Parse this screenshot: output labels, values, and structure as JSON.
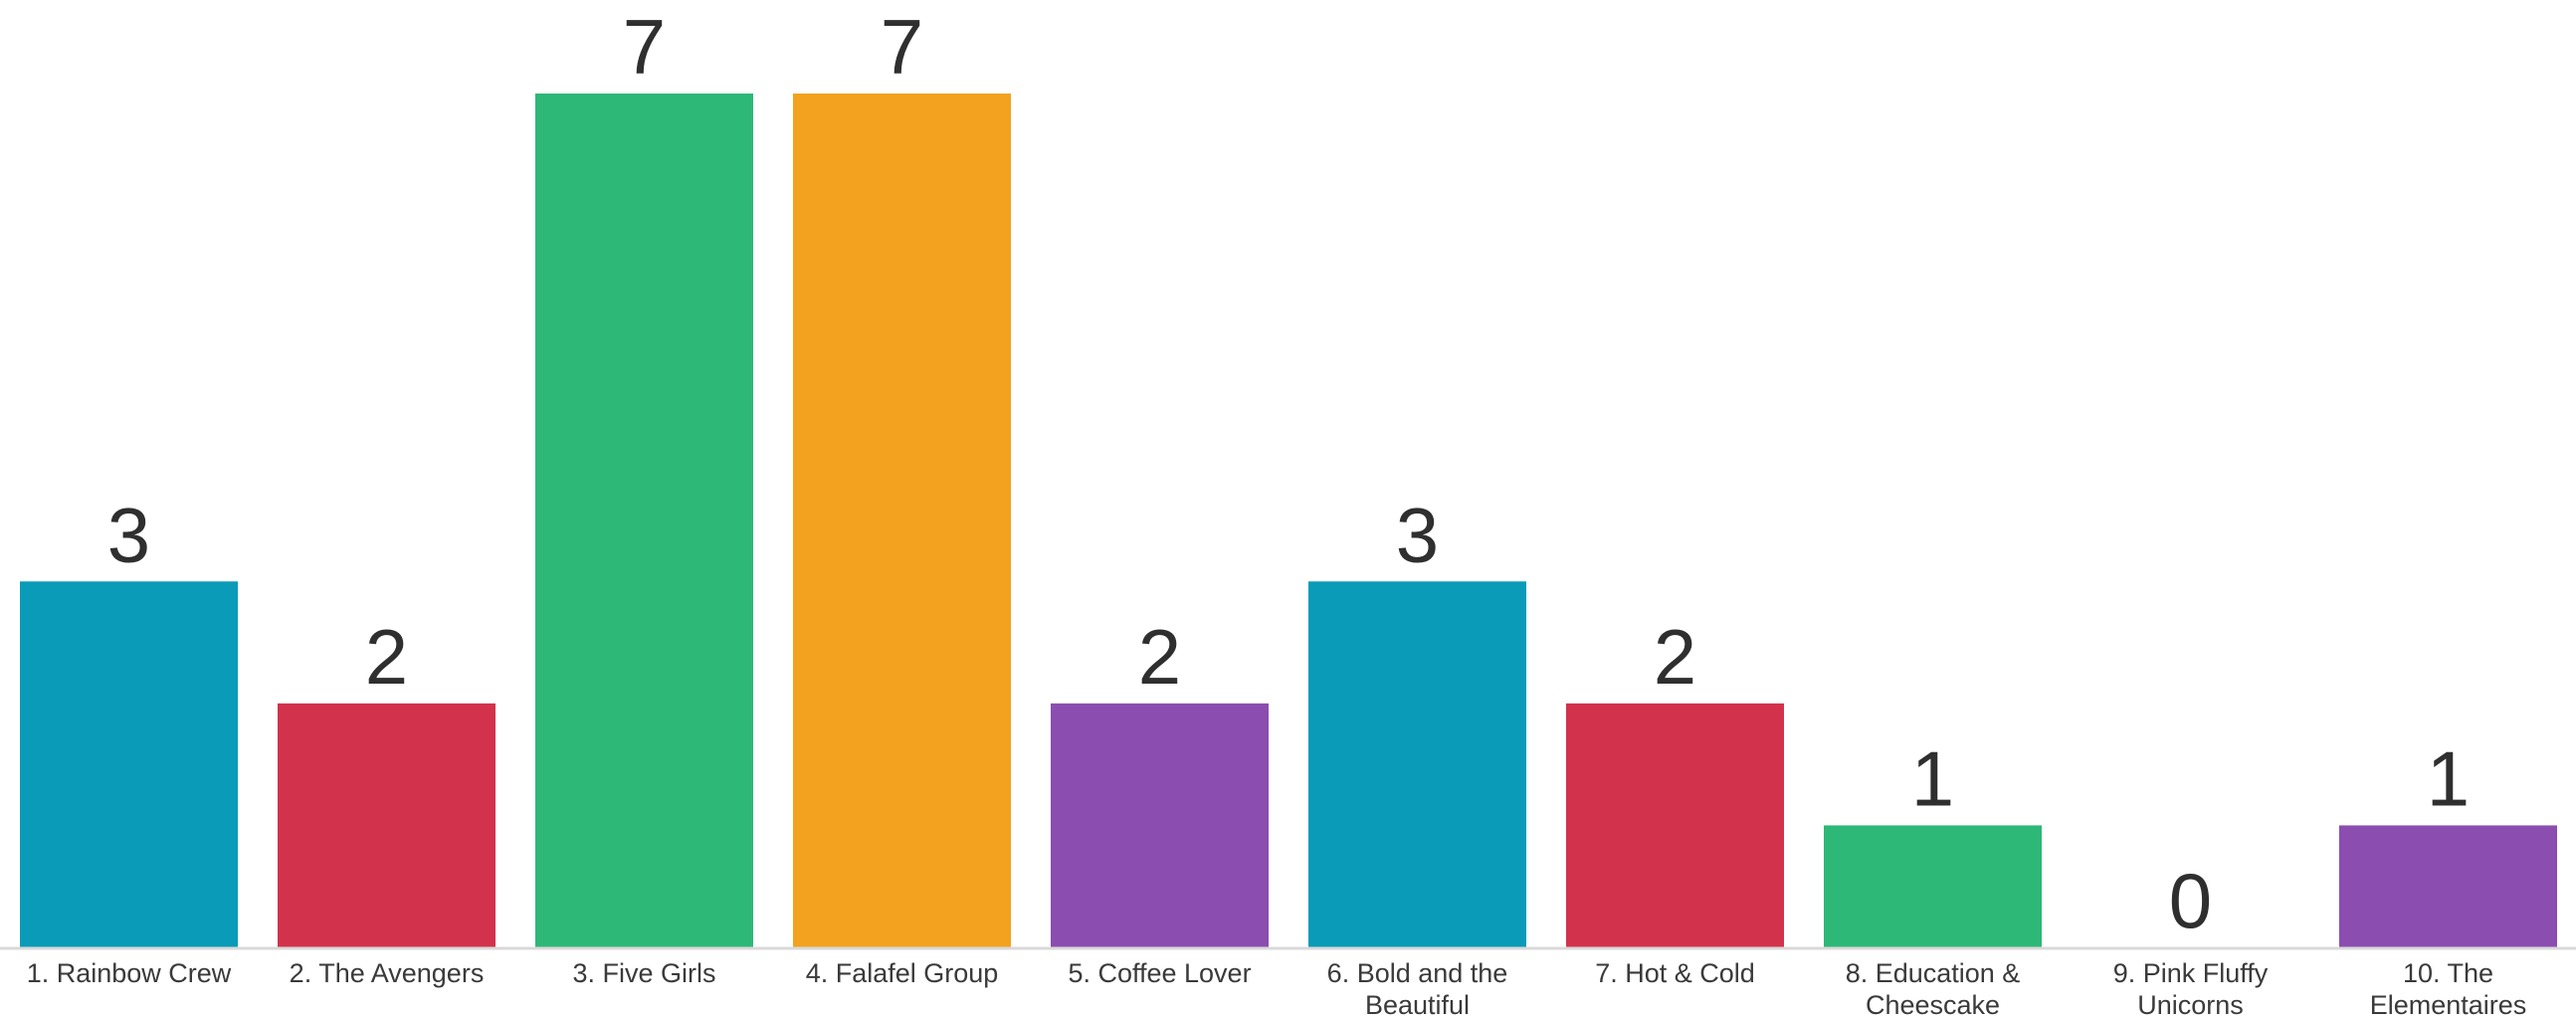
{
  "chart_data": {
    "type": "bar",
    "title": "",
    "xlabel": "",
    "ylabel": "",
    "ylim": [
      0,
      7
    ],
    "grid": false,
    "categories": [
      "1. Rainbow Crew",
      "2. The Avengers",
      "3. Five Girls",
      "4. Falafel Group",
      "5. Coffee Lover",
      "6. Bold and the Beautiful",
      "7. Hot & Cold",
      "8. Education & Cheescake",
      "9. Pink Fluffy Unicorns",
      "10. The Elementaires"
    ],
    "category_lines": [
      [
        "1. Rainbow Crew"
      ],
      [
        "2. The Avengers"
      ],
      [
        "3. Five Girls"
      ],
      [
        "4. Falafel Group"
      ],
      [
        "5. Coffee Lover"
      ],
      [
        "6. Bold and the",
        "Beautiful"
      ],
      [
        "7. Hot & Cold"
      ],
      [
        "8. Education &",
        "Cheescake"
      ],
      [
        "9. Pink Fluffy",
        "Unicorns"
      ],
      [
        "10. The",
        "Elementaires"
      ]
    ],
    "values": [
      3,
      2,
      7,
      7,
      2,
      3,
      2,
      1,
      0,
      1
    ],
    "colors": [
      "#0a9bb8",
      "#d3324c",
      "#2db877",
      "#f2a21f",
      "#8b4db0",
      "#0a9bb8",
      "#d3324c",
      "#2db877",
      "#ffffff",
      "#8b4db0"
    ],
    "axis_color": "#d9d9d9"
  }
}
